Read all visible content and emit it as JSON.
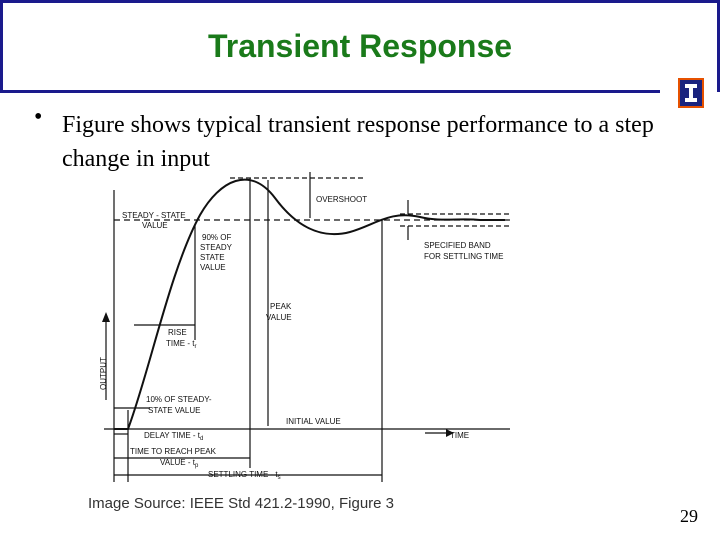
{
  "slide": {
    "title": "Transient Response",
    "bullet": "Figure shows typical transient response performance to a step change in input",
    "source": "Image Source: IEEE Std 421.2-1990, Figure 3",
    "page_number": "29",
    "colors": {
      "title": "#1a7a1a",
      "frame": "#1a1a8c"
    }
  },
  "diagram": {
    "labels": {
      "steady_state": "STEADY - STATE",
      "steady_state_value": "VALUE",
      "overshoot": "OVERSHOOT",
      "ninety_1": "90% OF",
      "ninety_2": "STEADY",
      "ninety_3": "STATE",
      "ninety_4": "VALUE",
      "band_1": "SPECIFIED  BAND",
      "band_2": "FOR SETTLING  TIME",
      "peak_1": "PEAK",
      "peak_2": "VALUE",
      "rise_1": "RISE",
      "rise_2": "TIME - t",
      "rise_sub": "r",
      "output": "OUTPUT",
      "ten_1": "10% OF STEADY-",
      "ten_2": "STATE VALUE",
      "initial": "INITIAL VALUE",
      "delay": "DELAY TIME - t",
      "delay_sub": "d",
      "time": "TIME",
      "peak_time_1": "TIME  TO REACH PEAK",
      "peak_time_2": "VALUE - t",
      "peak_time_sub": "p",
      "settling": "SETTLING  TIME - t",
      "settling_sub": "s"
    }
  }
}
